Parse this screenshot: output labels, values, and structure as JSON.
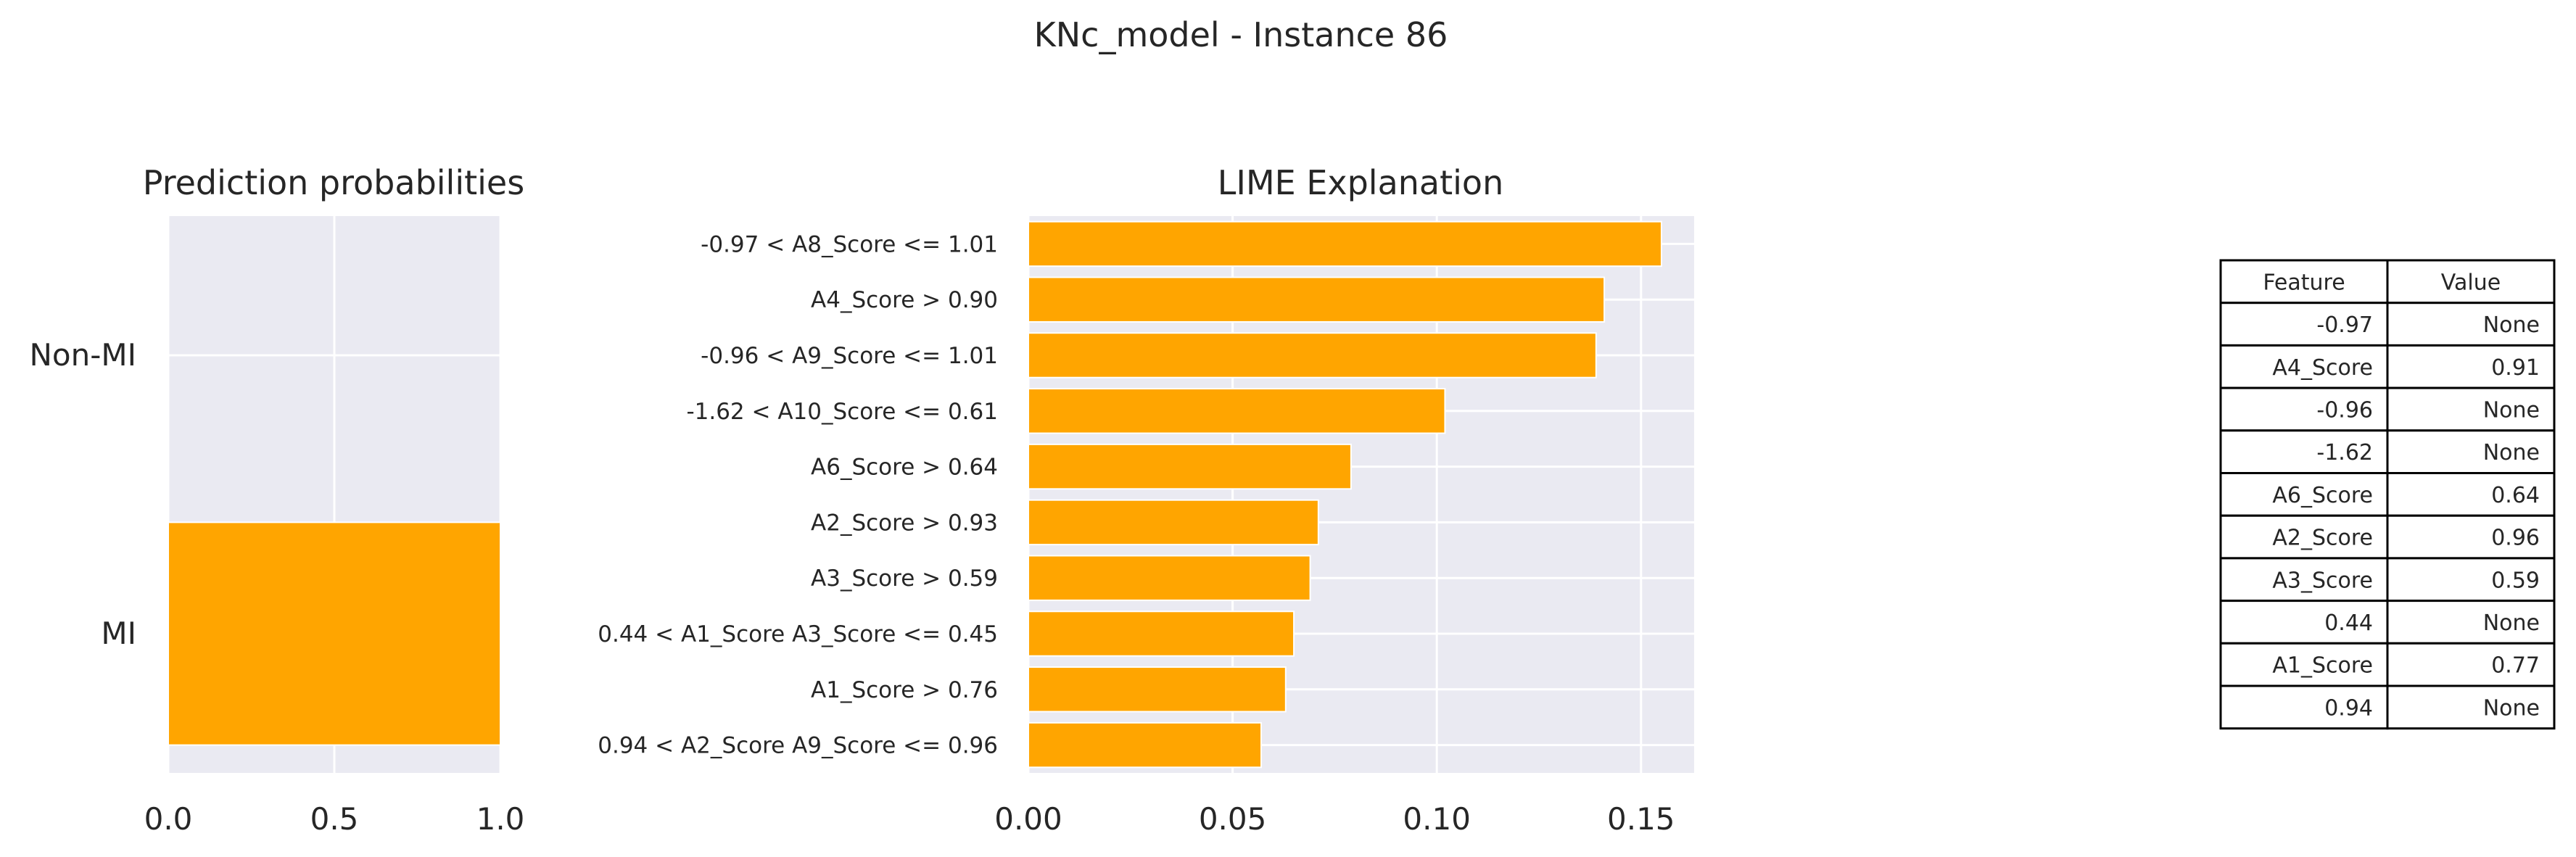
{
  "suptitle": "KNc_model - Instance 86",
  "colors": {
    "bar": "#ffa500",
    "panel_bg": "#eaeaf2",
    "grid": "#ffffff",
    "text": "#262626"
  },
  "chart_data": [
    {
      "type": "bar",
      "orientation": "horizontal",
      "title": "Prediction probabilities",
      "categories": [
        "Non-MI",
        "MI"
      ],
      "values": [
        0.0,
        1.0
      ],
      "xlim": [
        0.0,
        1.0
      ],
      "xticks": [
        "0.0",
        "0.5",
        "1.0"
      ],
      "grid": true
    },
    {
      "type": "bar",
      "orientation": "horizontal",
      "title": "LIME Explanation",
      "categories": [
        "-0.97 < A8_Score <= 1.01",
        "A4_Score > 0.90",
        "-0.96 < A9_Score <= 1.01",
        "-1.62 < A10_Score <= 0.61",
        "A6_Score > 0.64",
        "A2_Score > 0.93",
        "A3_Score > 0.59",
        "0.44 < A1_Score A3_Score <= 0.45",
        "A1_Score > 0.76",
        "0.94 < A2_Score A9_Score <= 0.96"
      ],
      "values": [
        0.155,
        0.141,
        0.139,
        0.102,
        0.079,
        0.071,
        0.069,
        0.065,
        0.063,
        0.057
      ],
      "xlim": [
        0.0,
        0.163
      ],
      "xticks": [
        "0.00",
        "0.05",
        "0.10",
        "0.15"
      ],
      "grid": true
    },
    {
      "type": "table",
      "columns": [
        "Feature",
        "Value"
      ],
      "rows": [
        [
          "-0.97",
          "None"
        ],
        [
          "A4_Score",
          "0.91"
        ],
        [
          "-0.96",
          "None"
        ],
        [
          "-1.62",
          "None"
        ],
        [
          "A6_Score",
          "0.64"
        ],
        [
          "A2_Score",
          "0.96"
        ],
        [
          "A3_Score",
          "0.59"
        ],
        [
          "0.44",
          "None"
        ],
        [
          "A1_Score",
          "0.77"
        ],
        [
          "0.94",
          "None"
        ]
      ]
    }
  ]
}
